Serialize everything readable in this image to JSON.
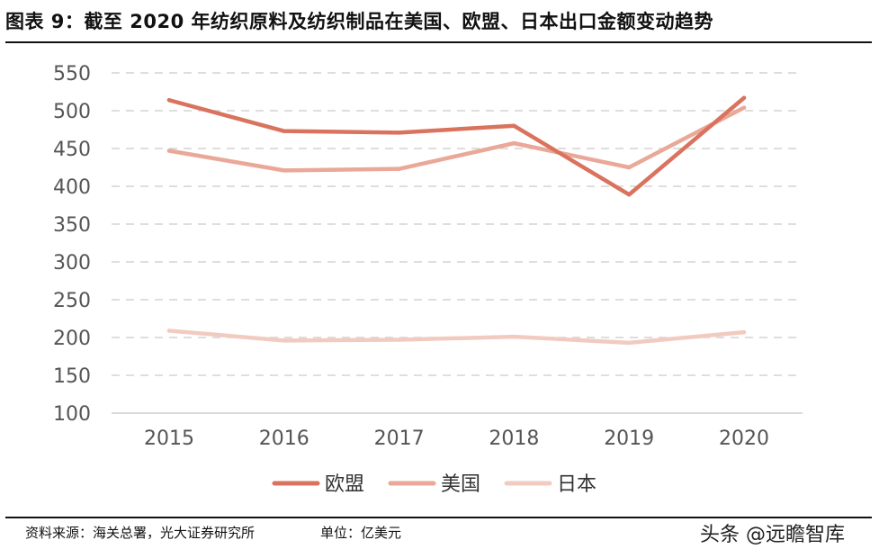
{
  "header": {
    "title": "图表 9：截至 2020 年纺织原料及纺织制品在美国、欧盟、日本出口金额变动趋势"
  },
  "footer": {
    "source": "资料来源：海关总署，光大证券研究所",
    "unit": "单位：亿美元",
    "watermark": "头条 @远瞻智库"
  },
  "chart_data": {
    "type": "line",
    "x": [
      "2015",
      "2016",
      "2017",
      "2018",
      "2019",
      "2020"
    ],
    "ylim": [
      100,
      550
    ],
    "yticks": [
      "550",
      "500",
      "450",
      "400",
      "350",
      "300",
      "250",
      "200",
      "150",
      "100"
    ],
    "grid": true,
    "legend_position": "bottom",
    "series": [
      {
        "name": "欧盟",
        "values": [
          514,
          473,
          471,
          480,
          389,
          517
        ],
        "color": "#d9735e"
      },
      {
        "name": "美国",
        "values": [
          447,
          421,
          423,
          457,
          425,
          504
        ],
        "color": "#e9a898"
      },
      {
        "name": "日本",
        "values": [
          209,
          196,
          197,
          201,
          193,
          207
        ],
        "color": "#f2cbc0"
      }
    ]
  }
}
